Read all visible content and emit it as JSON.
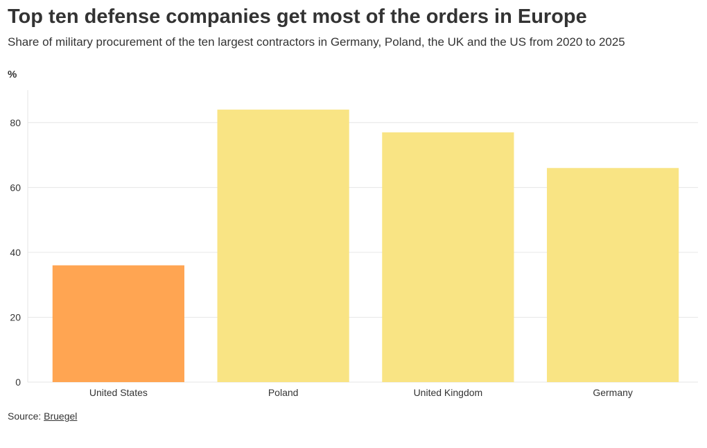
{
  "chart_data": {
    "type": "bar",
    "title": "Top ten defense companies get most of the orders in Europe",
    "subtitle": "Share of military procurement of the ten largest contractors in Germany, Poland, the UK and the US from 2020 to 2025",
    "ylabel": "%",
    "xlabel": "",
    "categories": [
      "United States",
      "Poland",
      "United Kingdom",
      "Germany"
    ],
    "values": [
      36,
      84,
      77,
      66
    ],
    "ylim": [
      0,
      90
    ],
    "yticks": [
      0,
      20,
      40,
      60,
      80
    ],
    "grid": true,
    "legend": "none",
    "colors": {
      "highlight": "#FFA552",
      "default": "#F9E484",
      "grid": "#e6e6e6",
      "axis": "#e6e6e6"
    },
    "highlighted_categories": [
      "United States"
    ]
  },
  "source": {
    "prefix": "Source: ",
    "link_text": "Bruegel"
  }
}
